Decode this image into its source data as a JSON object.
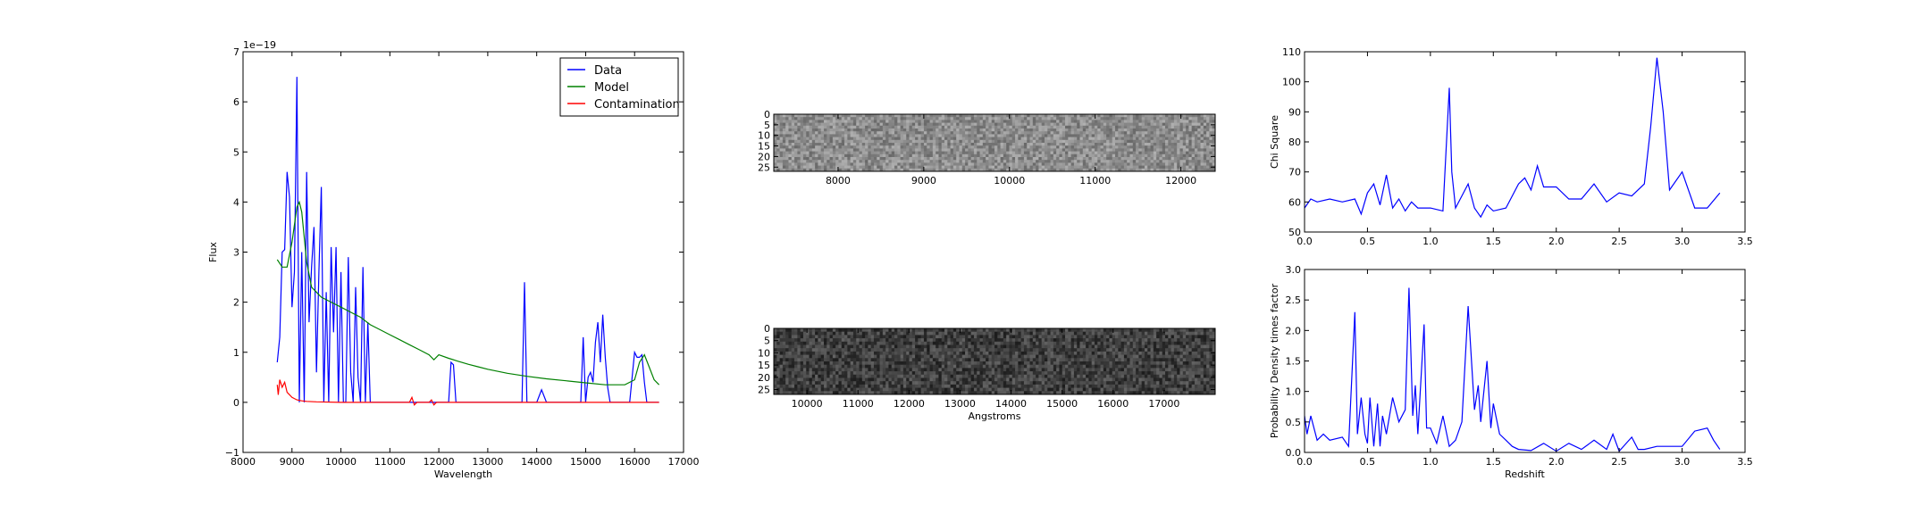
{
  "chart_data": [
    {
      "id": "spectrum",
      "type": "line",
      "xlabel": "Wavelength",
      "ylabel": "Flux",
      "offset_text": "1e−19",
      "xlim": [
        8000,
        17000
      ],
      "ylim": [
        -1,
        7
      ],
      "xticks": [
        "8000",
        "9000",
        "10000",
        "11000",
        "12000",
        "13000",
        "14000",
        "15000",
        "16000",
        "17000"
      ],
      "yticks": [
        "−1",
        "0",
        "1",
        "2",
        "3",
        "4",
        "5",
        "6",
        "7"
      ],
      "legend_position": "top-right",
      "series": [
        {
          "name": "Data",
          "color": "#0000ff",
          "x": [
            8700,
            8750,
            8800,
            8850,
            8900,
            8950,
            9000,
            9050,
            9100,
            9150,
            9200,
            9250,
            9300,
            9350,
            9400,
            9450,
            9500,
            9550,
            9600,
            9650,
            9700,
            9750,
            9800,
            9850,
            9900,
            9950,
            10000,
            10050,
            10100,
            10150,
            10200,
            10250,
            10300,
            10350,
            10400,
            10450,
            10500,
            10550,
            10600,
            10650,
            10700,
            10750,
            10800,
            10850,
            10900,
            10950,
            11000,
            11050,
            11100,
            11150,
            11200,
            11250,
            11300,
            11350,
            11400,
            11450,
            11500,
            11600,
            11700,
            11800,
            11900,
            12000,
            12100,
            12200,
            12250,
            12300,
            12350,
            12400,
            12500,
            12600,
            12800,
            13000,
            13200,
            13400,
            13600,
            13700,
            13750,
            13800,
            13850,
            13900,
            14000,
            14100,
            14200,
            14300,
            14500,
            14700,
            14900,
            14950,
            15000,
            15050,
            15100,
            15150,
            15200,
            15250,
            15300,
            15350,
            15400,
            15450,
            15500,
            15550,
            15600,
            15700,
            15800,
            15900,
            16000,
            16050,
            16100,
            16150,
            16200,
            16250,
            16300,
            16350,
            16400,
            16450,
            16500
          ],
          "y": [
            0.8,
            1.3,
            3.0,
            3.05,
            4.6,
            4.1,
            1.9,
            2.6,
            6.5,
            0.0,
            3.0,
            0.0,
            4.6,
            1.6,
            2.7,
            3.5,
            0.6,
            2.6,
            4.3,
            0.0,
            2.2,
            0.0,
            3.1,
            1.4,
            3.1,
            0.0,
            2.6,
            0.0,
            0.0,
            2.9,
            0.6,
            0.0,
            2.3,
            0.5,
            0.0,
            2.7,
            0.0,
            1.6,
            0.0,
            0.0,
            0.0,
            0.0,
            0.0,
            0.0,
            0.0,
            0.0,
            0.0,
            0.0,
            0.0,
            0.0,
            0.0,
            0.0,
            0.0,
            0.0,
            0.0,
            0.0,
            0.0,
            0.0,
            0.0,
            0.0,
            0.0,
            0.0,
            0.0,
            0.0,
            0.8,
            0.75,
            0.0,
            0.0,
            0.0,
            0.0,
            0.0,
            0.0,
            0.0,
            0.0,
            0.0,
            0.0,
            2.4,
            0.0,
            0.0,
            0.0,
            0.0,
            0.25,
            0.0,
            0.0,
            0.0,
            0.0,
            0.0,
            1.3,
            0.0,
            0.5,
            0.6,
            0.4,
            1.2,
            1.6,
            0.8,
            1.75,
            0.9,
            0.3,
            0.0,
            0.0,
            0.0,
            0.0,
            0.0,
            0.0,
            1.0,
            0.9,
            0.9,
            0.95,
            0.4,
            0.0,
            0.0,
            0.0,
            0.0,
            0.0,
            0.0
          ]
        },
        {
          "name": "Model",
          "color": "#008000",
          "x": [
            8700,
            8800,
            8900,
            9000,
            9100,
            9150,
            9200,
            9300,
            9400,
            9500,
            9600,
            9800,
            10000,
            10200,
            10400,
            10600,
            10800,
            11000,
            11200,
            11400,
            11600,
            11800,
            11900,
            12000,
            12200,
            12400,
            12600,
            12800,
            13000,
            13400,
            13800,
            14200,
            14600,
            15000,
            15400,
            15800,
            16000,
            16100,
            16200,
            16300,
            16400,
            16500
          ],
          "y": [
            2.85,
            2.7,
            2.7,
            3.2,
            3.9,
            4.0,
            3.8,
            2.8,
            2.3,
            2.2,
            2.1,
            2.0,
            1.9,
            1.8,
            1.7,
            1.55,
            1.45,
            1.35,
            1.25,
            1.15,
            1.05,
            0.95,
            0.85,
            0.95,
            0.88,
            0.82,
            0.76,
            0.71,
            0.66,
            0.58,
            0.52,
            0.47,
            0.43,
            0.39,
            0.35,
            0.35,
            0.45,
            0.8,
            0.95,
            0.7,
            0.45,
            0.35
          ]
        },
        {
          "name": "Contamination",
          "color": "#ff0000",
          "x": [
            8700,
            8720,
            8750,
            8800,
            8850,
            8900,
            9000,
            9100,
            9200,
            9300,
            9500,
            10000,
            11000,
            11400,
            11450,
            11500,
            11550,
            11800,
            11850,
            11900,
            11950,
            12000,
            13000,
            14000,
            15000,
            16000,
            16500
          ],
          "y": [
            0.35,
            0.15,
            0.45,
            0.3,
            0.4,
            0.2,
            0.1,
            0.05,
            0.03,
            0.02,
            0.01,
            0.0,
            0.0,
            0.0,
            0.1,
            -0.05,
            0.0,
            0.0,
            0.05,
            -0.05,
            0.0,
            0.0,
            0.0,
            0.0,
            0.0,
            0.0,
            0.0
          ]
        }
      ]
    },
    {
      "id": "image-top",
      "type": "heatmap",
      "xlim": [
        7250,
        12400
      ],
      "ylim": [
        0,
        27
      ],
      "xticks": [
        "8000",
        "9000",
        "10000",
        "11000",
        "12000"
      ],
      "yticks": [
        "0",
        "5",
        "10",
        "15",
        "20",
        "25"
      ],
      "colormap": "gray",
      "mean_level": 0.55
    },
    {
      "id": "image-bottom",
      "type": "heatmap",
      "xlabel": "Angstroms",
      "xlim": [
        9350,
        18000
      ],
      "ylim": [
        0,
        27
      ],
      "xticks": [
        "10000",
        "11000",
        "12000",
        "13000",
        "14000",
        "15000",
        "16000",
        "17000"
      ],
      "yticks": [
        "0",
        "5",
        "10",
        "15",
        "20",
        "25"
      ],
      "colormap": "gray",
      "mean_level": 0.25
    },
    {
      "id": "chi-square",
      "type": "line",
      "ylabel": "Chi Square",
      "xlim": [
        0,
        3.5
      ],
      "ylim": [
        50,
        110
      ],
      "xticks": [
        "0.0",
        "0.5",
        "1.0",
        "1.5",
        "2.0",
        "2.5",
        "3.0",
        "3.5"
      ],
      "yticks": [
        "50",
        "60",
        "70",
        "80",
        "90",
        "100",
        "110"
      ],
      "series": [
        {
          "color": "#0000ff",
          "x": [
            0.0,
            0.05,
            0.1,
            0.2,
            0.3,
            0.4,
            0.45,
            0.5,
            0.55,
            0.6,
            0.65,
            0.7,
            0.75,
            0.8,
            0.85,
            0.9,
            1.0,
            1.1,
            1.15,
            1.17,
            1.2,
            1.3,
            1.35,
            1.4,
            1.45,
            1.5,
            1.6,
            1.7,
            1.75,
            1.8,
            1.85,
            1.9,
            2.0,
            2.1,
            2.2,
            2.3,
            2.4,
            2.5,
            2.6,
            2.7,
            2.75,
            2.8,
            2.85,
            2.9,
            3.0,
            3.1,
            3.2,
            3.3
          ],
          "y": [
            58,
            61,
            60,
            61,
            60,
            61,
            56,
            63,
            66,
            59,
            69,
            58,
            61,
            57,
            60,
            58,
            58,
            57,
            98,
            70,
            58,
            66,
            58,
            55,
            59,
            57,
            58,
            66,
            68,
            64,
            72,
            65,
            65,
            61,
            61,
            66,
            60,
            63,
            62,
            66,
            85,
            108,
            90,
            64,
            70,
            58,
            58,
            63
          ]
        }
      ]
    },
    {
      "id": "pdf",
      "type": "line",
      "xlabel": "Redshift",
      "ylabel": "Probability Density times factor",
      "xlim": [
        0,
        3.5
      ],
      "ylim": [
        0,
        3.0
      ],
      "xticks": [
        "0.0",
        "0.5",
        "1.0",
        "1.5",
        "2.0",
        "2.5",
        "3.0",
        "3.5"
      ],
      "yticks": [
        "0.0",
        "0.5",
        "1.0",
        "1.5",
        "2.0",
        "2.5",
        "3.0"
      ],
      "series": [
        {
          "color": "#0000ff",
          "x": [
            0.0,
            0.02,
            0.05,
            0.1,
            0.15,
            0.2,
            0.3,
            0.35,
            0.4,
            0.42,
            0.45,
            0.48,
            0.5,
            0.52,
            0.55,
            0.58,
            0.6,
            0.62,
            0.65,
            0.7,
            0.75,
            0.8,
            0.83,
            0.86,
            0.88,
            0.9,
            0.95,
            0.97,
            1.0,
            1.05,
            1.1,
            1.15,
            1.2,
            1.25,
            1.3,
            1.35,
            1.38,
            1.4,
            1.45,
            1.48,
            1.5,
            1.55,
            1.6,
            1.65,
            1.7,
            1.8,
            1.9,
            2.0,
            2.1,
            2.2,
            2.3,
            2.4,
            2.45,
            2.5,
            2.6,
            2.65,
            2.7,
            2.8,
            3.0,
            3.1,
            3.2,
            3.25,
            3.3
          ],
          "y": [
            0.6,
            0.3,
            0.6,
            0.2,
            0.3,
            0.2,
            0.25,
            0.1,
            2.3,
            0.3,
            0.9,
            0.3,
            0.15,
            0.9,
            0.1,
            0.8,
            0.1,
            0.6,
            0.3,
            0.9,
            0.5,
            0.7,
            2.7,
            0.6,
            1.1,
            0.3,
            2.1,
            0.4,
            0.4,
            0.15,
            0.6,
            0.1,
            0.2,
            0.5,
            2.4,
            0.7,
            1.1,
            0.5,
            1.5,
            0.4,
            0.8,
            0.3,
            0.2,
            0.1,
            0.05,
            0.03,
            0.15,
            0.02,
            0.15,
            0.05,
            0.2,
            0.05,
            0.3,
            0.02,
            0.25,
            0.05,
            0.05,
            0.1,
            0.1,
            0.35,
            0.4,
            0.2,
            0.05
          ]
        }
      ]
    }
  ]
}
